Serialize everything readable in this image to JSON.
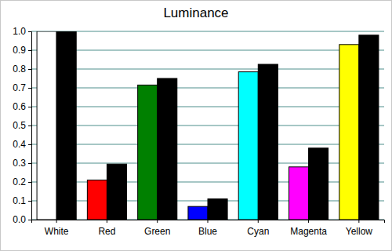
{
  "chart_data": {
    "type": "bar",
    "title": "Luminance",
    "categories": [
      "White",
      "Red",
      "Green",
      "Blue",
      "Cyan",
      "Magenta",
      "Yellow"
    ],
    "series": [
      {
        "colors": [
          "#ffffff",
          "#ff0000",
          "#008000",
          "#0000ff",
          "#00ffff",
          "#ff00ff",
          "#ffff00"
        ],
        "values": [
          1.0,
          0.21,
          0.715,
          0.07,
          0.785,
          0.28,
          0.93
        ]
      },
      {
        "color": "#000000",
        "values": [
          1.0,
          0.295,
          0.75,
          0.11,
          0.825,
          0.38,
          0.98
        ]
      }
    ],
    "ylim": [
      0,
      1.0
    ],
    "yticks": [
      {
        "value": 0,
        "label": "0.0"
      },
      0.1,
      0.2,
      0.3,
      0.4,
      0.5,
      0.6,
      0.7,
      0.8,
      0.9,
      {
        "value": 1,
        "label": "1.0"
      }
    ],
    "grid": true
  }
}
